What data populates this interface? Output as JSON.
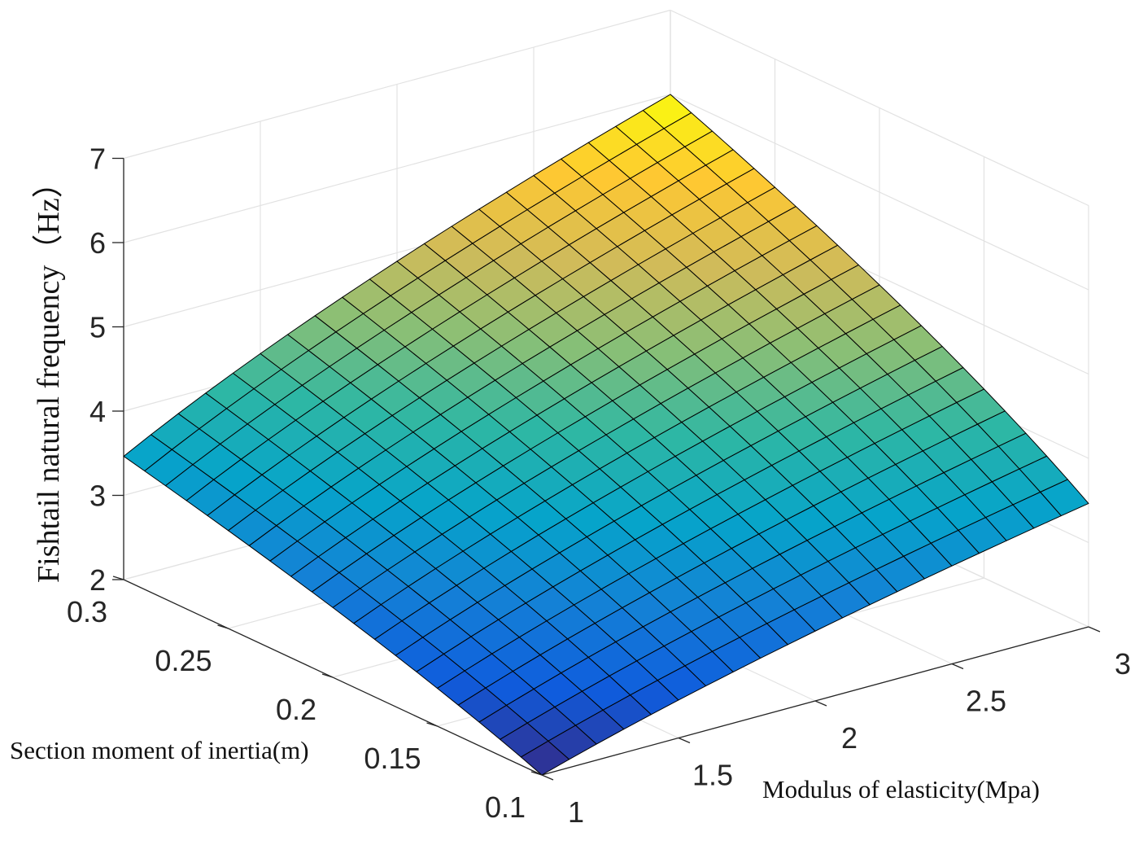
{
  "chart_data": {
    "type": "surface",
    "title": "",
    "xlabel": "Modulus of elasticity(Mpa)",
    "ylabel": "Section moment of inertia(m)",
    "zlabel": "Fishtail natural frequency（Hz）",
    "xlim": [
      1,
      3
    ],
    "ylim": [
      0.1,
      0.3
    ],
    "zlim": [
      2,
      7
    ],
    "x_ticks": [
      1,
      1.5,
      2,
      2.5,
      3
    ],
    "x_tick_labels": [
      "1",
      "1.5",
      "2",
      "2.5",
      "3"
    ],
    "y_ticks": [
      0.1,
      0.15,
      0.2,
      0.25,
      0.3
    ],
    "y_tick_labels": [
      "0.1",
      "0.15",
      "0.2",
      "0.25",
      "0.3"
    ],
    "z_ticks": [
      2,
      3,
      4,
      5,
      6,
      7
    ],
    "z_tick_labels": [
      "2",
      "3",
      "4",
      "5",
      "6",
      "7"
    ],
    "grid": true,
    "colormap": "parula",
    "mesh_x": {
      "start": 1,
      "end": 3,
      "divisions": 20
    },
    "mesh_y": {
      "start": 0.1,
      "end": 0.3,
      "divisions": 20
    },
    "corner_values": [
      {
        "x": 1,
        "y": 0.1,
        "z": 2.0
      },
      {
        "x": 3,
        "y": 0.1,
        "z": 3.46
      },
      {
        "x": 1,
        "y": 0.3,
        "z": 3.46
      },
      {
        "x": 3,
        "y": 0.3,
        "z": 6.0
      }
    ],
    "model": "z = 2 * sqrt((x / 1) * (y / 0.1))",
    "colormap_stops": [
      "#352a87",
      "#0f5cdd",
      "#1481d6",
      "#06a4ca",
      "#2eb7a4",
      "#87bf77",
      "#d1bb59",
      "#fec832",
      "#f9fb0e"
    ]
  }
}
